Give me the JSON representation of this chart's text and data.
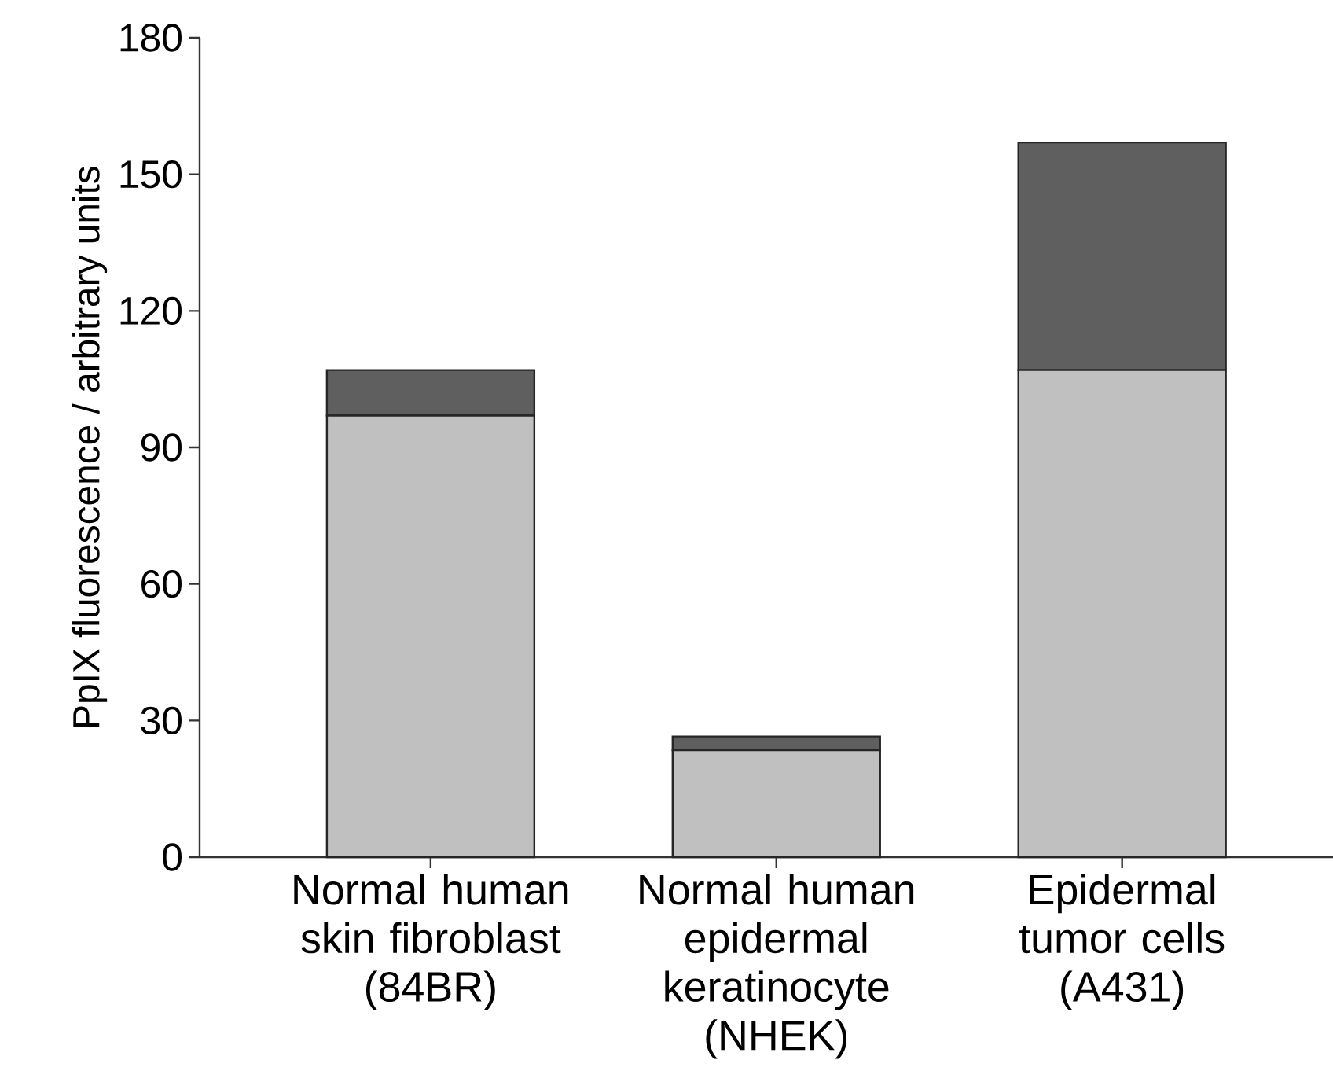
{
  "chart_data": {
    "type": "bar",
    "stacked": true,
    "ylabel": "PpIX fluorescence / arbitrary units",
    "categories": [
      "Normal human skin fibroblast (84BR)",
      "Normal human epidermal keratinocyte (NHEK)",
      "Epidermal tumor cells (A431)"
    ],
    "series": [
      {
        "color": "#c0c0c0",
        "values": [
          97,
          23.5,
          107
        ]
      },
      {
        "color": "#5f5f5f",
        "values": [
          10,
          3,
          50
        ]
      }
    ],
    "ylim": [
      0,
      180
    ],
    "yticks": [
      0,
      30,
      60,
      90,
      120,
      150,
      180
    ]
  }
}
